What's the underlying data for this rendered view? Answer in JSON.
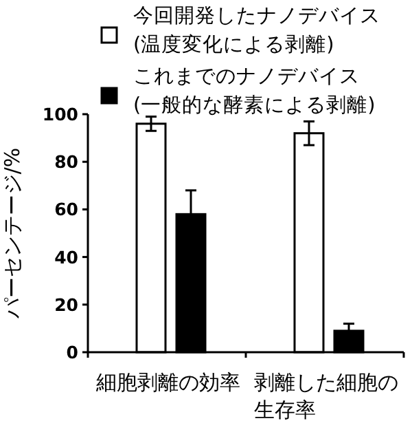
{
  "chart_data": {
    "type": "bar",
    "ylabel": "パーセンテージ/%",
    "categories": [
      "細胞剥離の効率",
      "剥離した細胞の生存率"
    ],
    "ylim": [
      0,
      100
    ],
    "yticks": [
      0,
      20,
      40,
      60,
      80,
      100
    ],
    "legend": "top",
    "series": [
      {
        "name": "今回開発したナノデバイス(温度変化による剥離)",
        "color": "#ffffff",
        "values": [
          96,
          92
        ],
        "errors": [
          3,
          5
        ]
      },
      {
        "name": "これまでのナノデバイス(一般的な酵素による剥離)",
        "color": "#000000",
        "values": [
          58,
          9
        ],
        "errors": [
          10,
          3
        ]
      }
    ]
  }
}
